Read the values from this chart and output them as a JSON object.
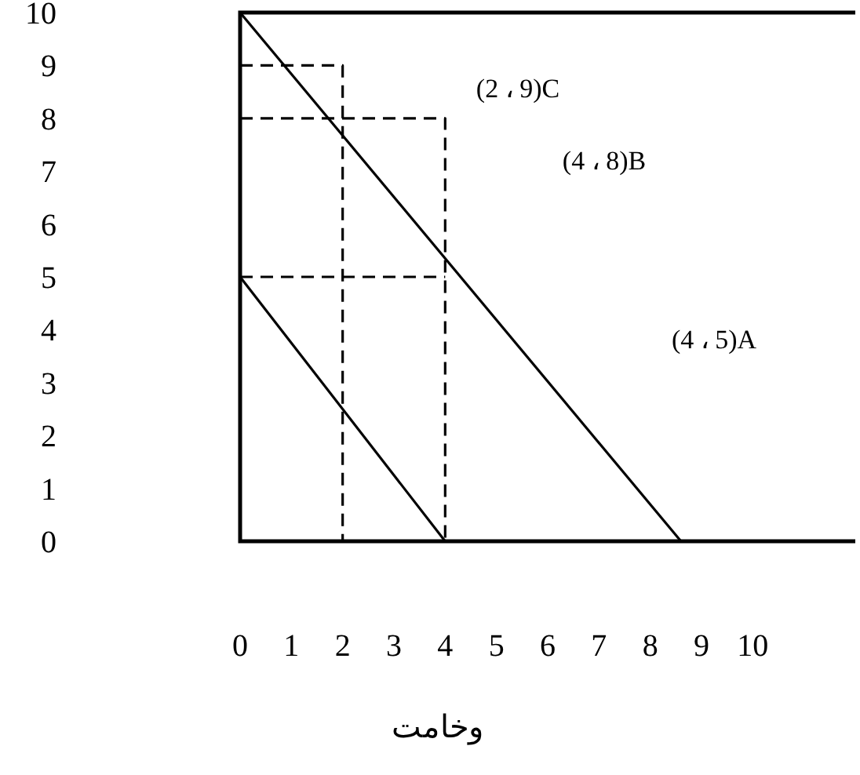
{
  "chart_data": {
    "type": "line",
    "xlabel": "وخامت",
    "xlim": [
      0,
      12
    ],
    "ylim": [
      0,
      10
    ],
    "xticks": [
      0,
      1,
      2,
      3,
      4,
      5,
      6,
      7,
      8,
      9,
      10
    ],
    "yticks": [
      0,
      1,
      2,
      3,
      4,
      5,
      6,
      7,
      8,
      9,
      10
    ],
    "grid": false,
    "marker": "none",
    "series": [
      {
        "x": [
          0,
          8.6
        ],
        "values": [
          10,
          0
        ],
        "color": "#000000",
        "line_style": "solid"
      },
      {
        "x": [
          0,
          4
        ],
        "values": [
          5,
          0
        ],
        "color": "#000000",
        "line_style": "solid"
      },
      {
        "x": [
          0,
          2,
          2
        ],
        "values": [
          9,
          9,
          0
        ],
        "color": "#000000",
        "line_style": "dashed"
      },
      {
        "x": [
          0,
          4,
          4
        ],
        "values": [
          8,
          8,
          0
        ],
        "color": "#000000",
        "line_style": "dashed"
      },
      {
        "x": [
          0,
          4
        ],
        "values": [
          5,
          5
        ],
        "color": "#000000",
        "line_style": "dashed"
      }
    ],
    "annotations": [
      "(2 ، 9)C",
      "(4 ، 8)B",
      "(4 ، 5)A"
    ]
  }
}
